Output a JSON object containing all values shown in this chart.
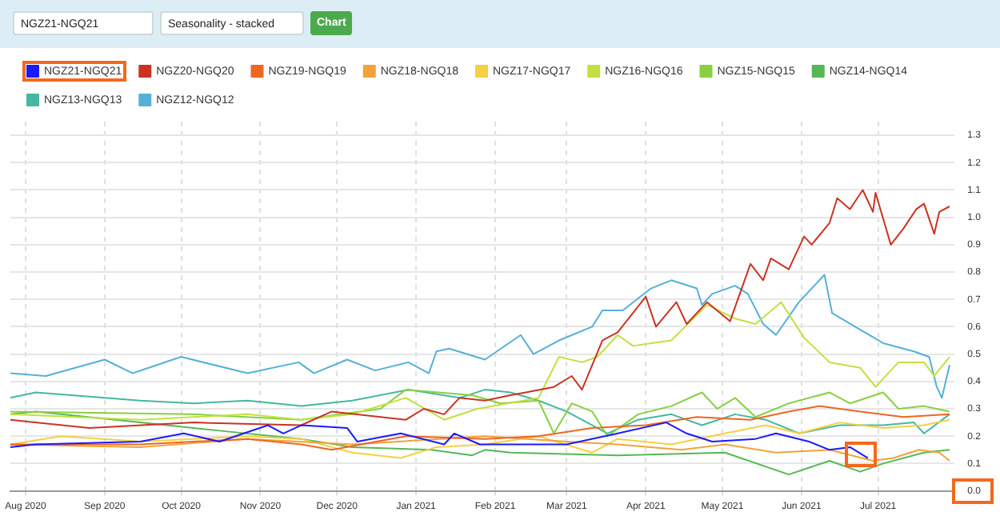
{
  "chart_data": {
    "type": "line",
    "annotations": [
      "NGZ21-NGQ21",
      "Seasonality - stacked",
      "Chart"
    ],
    "xlim": [
      "2020-07-26",
      "2021-07-31"
    ],
    "xticks": [
      {
        "value": "2020-08-01",
        "label": "Aug 2020"
      },
      {
        "value": "2020-09-01",
        "label": "Sep 2020"
      },
      {
        "value": "2020-10-01",
        "label": "Oct 2020"
      },
      {
        "value": "2020-11-01",
        "label": "Nov 2020"
      },
      {
        "value": "2020-12-01",
        "label": "Dec 2020"
      },
      {
        "value": "2021-01-01",
        "label": "Jan 2021"
      },
      {
        "value": "2021-02-01",
        "label": "Feb 2021"
      },
      {
        "value": "2021-03-01",
        "label": "Mar 2021"
      },
      {
        "value": "2021-04-01",
        "label": "Apr 2021"
      },
      {
        "value": "2021-05-01",
        "label": "May 2021"
      },
      {
        "value": "2021-06-01",
        "label": "Jun 2021"
      },
      {
        "value": "2021-07-01",
        "label": "Jul 2021"
      }
    ],
    "ylim": [
      0,
      1.35
    ],
    "yticks": [
      {
        "value": 0,
        "label": "0.0"
      },
      0.1,
      0.2,
      0.3,
      0.4,
      0.5,
      0.6,
      0.7,
      0.8,
      0.9,
      {
        "value": 1,
        "label": "1.0"
      },
      1.1,
      1.2,
      1.3
    ],
    "grid": true,
    "legend": "top left",
    "marker": "none",
    "line_style": "solid",
    "series": [
      {
        "name": "NGZ21-NGQ21",
        "color": "#1a1aff",
        "x": [
          "2020-07-26",
          "2020-08-05",
          "2020-09-15",
          "2020-10-02",
          "2020-10-16",
          "2020-11-04",
          "2020-11-10",
          "2020-11-17",
          "2020-12-05",
          "2020-12-09",
          "2020-12-26",
          "2021-01-12",
          "2021-01-16",
          "2021-01-26",
          "2021-02-07",
          "2021-03-01",
          "2021-03-21",
          "2021-04-09",
          "2021-04-17",
          "2021-04-27",
          "2021-05-14",
          "2021-05-22",
          "2021-06-04",
          "2021-06-12",
          "2021-06-20",
          "2021-06-27"
        ],
        "values": [
          0.16,
          0.17,
          0.18,
          0.21,
          0.18,
          0.24,
          0.21,
          0.24,
          0.23,
          0.18,
          0.21,
          0.17,
          0.21,
          0.17,
          0.17,
          0.17,
          0.21,
          0.25,
          0.21,
          0.18,
          0.19,
          0.21,
          0.18,
          0.15,
          0.16,
          0.12
        ]
      },
      {
        "name": "NGZ20-NGQ20",
        "color": "#cc3322",
        "x": [
          "2020-07-26",
          "2020-08-26",
          "2020-10-06",
          "2020-11-17",
          "2020-11-29",
          "2020-12-28",
          "2021-01-04",
          "2021-01-12",
          "2021-01-18",
          "2021-01-28",
          "2021-02-07",
          "2021-02-13",
          "2021-02-24",
          "2021-03-03",
          "2021-03-07",
          "2021-03-15",
          "2021-03-21",
          "2021-04-01",
          "2021-04-05",
          "2021-04-13",
          "2021-04-17",
          "2021-04-25",
          "2021-05-04",
          "2021-05-12",
          "2021-05-17",
          "2021-05-20",
          "2021-05-27",
          "2021-06-02",
          "2021-06-05",
          "2021-06-12",
          "2021-06-15",
          "2021-06-20",
          "2021-06-25",
          "2021-06-29",
          "2021-06-30",
          "2021-07-06",
          "2021-07-11",
          "2021-07-16",
          "2021-07-19",
          "2021-07-23",
          "2021-07-25",
          "2021-07-29"
        ],
        "values": [
          0.26,
          0.23,
          0.25,
          0.24,
          0.29,
          0.26,
          0.3,
          0.28,
          0.34,
          0.33,
          0.35,
          0.36,
          0.38,
          0.42,
          0.37,
          0.55,
          0.58,
          0.71,
          0.6,
          0.69,
          0.61,
          0.69,
          0.62,
          0.83,
          0.77,
          0.85,
          0.81,
          0.93,
          0.9,
          0.98,
          1.07,
          1.03,
          1.1,
          1.02,
          1.09,
          0.9,
          0.96,
          1.03,
          1.05,
          0.94,
          1.02,
          1.04
        ]
      },
      {
        "name": "NGZ19-NGQ19",
        "color": "#ee6622",
        "x": [
          "2020-07-26",
          "2020-09-15",
          "2020-10-27",
          "2020-11-17",
          "2020-11-29",
          "2020-12-28",
          "2021-01-28",
          "2021-02-18",
          "2021-03-11",
          "2021-04-01",
          "2021-04-21",
          "2021-05-12",
          "2021-05-27",
          "2021-06-08",
          "2021-06-24",
          "2021-07-11",
          "2021-07-29"
        ],
        "values": [
          0.17,
          0.17,
          0.19,
          0.17,
          0.15,
          0.2,
          0.19,
          0.2,
          0.23,
          0.24,
          0.27,
          0.26,
          0.29,
          0.31,
          0.29,
          0.27,
          0.28
        ]
      },
      {
        "name": "NGZ18-NGQ18",
        "color": "#f2a33a",
        "x": [
          "2020-07-26",
          "2020-09-15",
          "2020-10-27",
          "2020-12-07",
          "2021-01-28",
          "2021-03-01",
          "2021-03-21",
          "2021-04-15",
          "2021-05-02",
          "2021-05-22",
          "2021-06-12",
          "2021-06-29",
          "2021-07-07",
          "2021-07-17",
          "2021-07-25",
          "2021-07-29"
        ],
        "values": [
          0.17,
          0.16,
          0.19,
          0.17,
          0.2,
          0.18,
          0.17,
          0.15,
          0.17,
          0.14,
          0.15,
          0.11,
          0.12,
          0.15,
          0.14,
          0.11
        ]
      },
      {
        "name": "NGZ17-NGQ17",
        "color": "#f5d040",
        "x": [
          "2020-07-26",
          "2020-08-15",
          "2020-09-15",
          "2020-10-27",
          "2020-11-17",
          "2020-12-07",
          "2020-12-26",
          "2021-01-09",
          "2021-01-28",
          "2021-02-18",
          "2021-03-11",
          "2021-03-21",
          "2021-04-11",
          "2021-05-02",
          "2021-05-18",
          "2021-05-31",
          "2021-06-16",
          "2021-07-03",
          "2021-07-19",
          "2021-07-29"
        ],
        "values": [
          0.17,
          0.2,
          0.18,
          0.2,
          0.19,
          0.14,
          0.12,
          0.16,
          0.17,
          0.2,
          0.14,
          0.19,
          0.17,
          0.21,
          0.24,
          0.21,
          0.25,
          0.23,
          0.24,
          0.26
        ]
      },
      {
        "name": "NGZ16-NGQ16",
        "color": "#c2e040",
        "x": [
          "2020-07-26",
          "2020-09-15",
          "2020-10-27",
          "2020-11-17",
          "2020-12-07",
          "2020-12-28",
          "2021-01-12",
          "2021-01-25",
          "2021-02-18",
          "2021-02-26",
          "2021-03-07",
          "2021-03-13",
          "2021-03-21",
          "2021-03-27",
          "2021-04-11",
          "2021-04-25",
          "2021-05-06",
          "2021-05-14",
          "2021-05-24",
          "2021-06-02",
          "2021-06-12",
          "2021-06-24",
          "2021-06-30",
          "2021-07-09",
          "2021-07-19",
          "2021-07-23",
          "2021-07-29"
        ],
        "values": [
          0.28,
          0.26,
          0.28,
          0.26,
          0.28,
          0.34,
          0.26,
          0.3,
          0.34,
          0.49,
          0.47,
          0.49,
          0.57,
          0.53,
          0.55,
          0.68,
          0.63,
          0.61,
          0.69,
          0.56,
          0.47,
          0.45,
          0.38,
          0.47,
          0.47,
          0.42,
          0.49
        ]
      },
      {
        "name": "NGZ15-NGQ15",
        "color": "#88d040",
        "x": [
          "2020-07-26",
          "2020-10-06",
          "2020-11-17",
          "2020-12-18",
          "2020-12-28",
          "2021-01-23",
          "2021-02-03",
          "2021-02-18",
          "2021-02-24",
          "2021-03-03",
          "2021-03-11",
          "2021-03-17",
          "2021-03-29",
          "2021-04-11",
          "2021-04-23",
          "2021-04-29",
          "2021-05-06",
          "2021-05-14",
          "2021-05-27",
          "2021-06-12",
          "2021-06-20",
          "2021-07-03",
          "2021-07-09",
          "2021-07-19",
          "2021-07-29"
        ],
        "values": [
          0.29,
          0.28,
          0.26,
          0.3,
          0.37,
          0.35,
          0.32,
          0.33,
          0.21,
          0.32,
          0.29,
          0.2,
          0.28,
          0.31,
          0.36,
          0.3,
          0.34,
          0.27,
          0.32,
          0.36,
          0.32,
          0.36,
          0.3,
          0.31,
          0.29
        ]
      },
      {
        "name": "NGZ14-NGQ14",
        "color": "#55b855",
        "x": [
          "2020-07-26",
          "2020-08-05",
          "2020-09-15",
          "2020-10-16",
          "2020-11-17",
          "2020-12-07",
          "2021-01-07",
          "2021-01-23",
          "2021-01-28",
          "2021-02-07",
          "2021-03-21",
          "2021-05-02",
          "2021-05-27",
          "2021-06-12",
          "2021-06-24",
          "2021-07-03",
          "2021-07-19",
          "2021-07-29"
        ],
        "values": [
          0.28,
          0.29,
          0.25,
          0.22,
          0.19,
          0.16,
          0.15,
          0.13,
          0.15,
          0.14,
          0.13,
          0.14,
          0.06,
          0.11,
          0.07,
          0.1,
          0.14,
          0.15
        ]
      },
      {
        "name": "NGZ13-NGQ13",
        "color": "#44b8a0",
        "x": [
          "2020-07-26",
          "2020-08-05",
          "2020-09-15",
          "2020-10-06",
          "2020-10-27",
          "2020-11-17",
          "2020-12-07",
          "2020-12-29",
          "2021-01-18",
          "2021-01-28",
          "2021-02-07",
          "2021-02-18",
          "2021-03-01",
          "2021-03-17",
          "2021-03-29",
          "2021-04-11",
          "2021-04-23",
          "2021-05-06",
          "2021-05-18",
          "2021-05-31",
          "2021-06-16",
          "2021-07-03",
          "2021-07-15",
          "2021-07-19",
          "2021-07-29"
        ],
        "values": [
          0.34,
          0.36,
          0.33,
          0.32,
          0.33,
          0.31,
          0.33,
          0.37,
          0.34,
          0.37,
          0.36,
          0.33,
          0.29,
          0.21,
          0.26,
          0.28,
          0.24,
          0.28,
          0.26,
          0.21,
          0.24,
          0.24,
          0.25,
          0.21,
          0.28
        ]
      },
      {
        "name": "NGZ12-NGQ12",
        "color": "#55b0d8",
        "x": [
          "2020-07-26",
          "2020-08-09",
          "2020-09-01",
          "2020-09-12",
          "2020-10-01",
          "2020-10-27",
          "2020-11-16",
          "2020-11-22",
          "2020-12-05",
          "2020-12-16",
          "2020-12-29",
          "2021-01-06",
          "2021-01-09",
          "2021-01-14",
          "2021-01-28",
          "2021-02-11",
          "2021-02-16",
          "2021-02-26",
          "2021-03-11",
          "2021-03-15",
          "2021-03-23",
          "2021-04-03",
          "2021-04-11",
          "2021-04-21",
          "2021-04-23",
          "2021-04-27",
          "2021-05-06",
          "2021-05-11",
          "2021-05-17",
          "2021-05-22",
          "2021-05-31",
          "2021-06-10",
          "2021-06-13",
          "2021-06-22",
          "2021-07-03",
          "2021-07-15",
          "2021-07-21",
          "2021-07-24",
          "2021-07-26",
          "2021-07-29"
        ],
        "values": [
          0.43,
          0.42,
          0.48,
          0.43,
          0.49,
          0.43,
          0.47,
          0.43,
          0.48,
          0.44,
          0.47,
          0.43,
          0.51,
          0.52,
          0.48,
          0.57,
          0.5,
          0.55,
          0.6,
          0.66,
          0.66,
          0.74,
          0.77,
          0.74,
          0.68,
          0.72,
          0.75,
          0.72,
          0.61,
          0.57,
          0.69,
          0.79,
          0.65,
          0.6,
          0.54,
          0.51,
          0.49,
          0.38,
          0.34,
          0.46
        ]
      }
    ]
  }
}
